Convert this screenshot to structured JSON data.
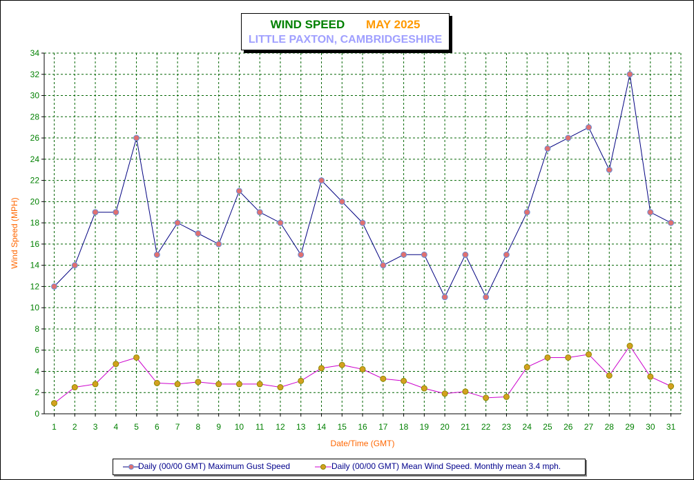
{
  "chart_data": {
    "type": "line",
    "title": "WIND SPEED",
    "title_date": "MAY 2025",
    "subtitle": "LITTLE PAXTON, CAMBRIDGESHIRE",
    "xlabel": "Date/Time (GMT)",
    "ylabel": "Wind Speed (MPH)",
    "ylim": [
      0,
      34
    ],
    "yticks": [
      0,
      2,
      4,
      6,
      8,
      10,
      12,
      14,
      16,
      18,
      20,
      22,
      24,
      26,
      28,
      30,
      32,
      34
    ],
    "grid": true,
    "legend_position": "bottom",
    "x": [
      1,
      2,
      3,
      4,
      5,
      6,
      7,
      8,
      9,
      10,
      11,
      12,
      13,
      14,
      15,
      16,
      17,
      18,
      19,
      20,
      21,
      22,
      23,
      24,
      25,
      26,
      27,
      28,
      29,
      30,
      31
    ],
    "series": [
      {
        "name": "Daily (00/00 GMT) Maximum Gust Speed",
        "line_color": "#000080",
        "marker_color": "#e07070",
        "marker_edge": "#6a8fd8",
        "values": [
          12,
          14,
          19,
          19,
          26,
          15,
          18,
          17,
          16,
          21,
          19,
          18,
          15,
          22,
          20,
          18,
          14,
          15,
          15,
          11,
          15,
          11,
          15,
          19,
          25,
          26,
          27,
          23,
          32,
          19,
          18
        ]
      },
      {
        "name": "Daily (00/00 GMT) Mean Wind Speed. Monthly mean 3.4 mph.",
        "line_color": "#cc00cc",
        "marker_color": "#d4a020",
        "marker_edge": "#8a8a00",
        "values": [
          1.0,
          2.5,
          2.8,
          4.7,
          5.3,
          2.9,
          2.8,
          3.0,
          2.8,
          2.8,
          2.8,
          2.5,
          3.1,
          4.3,
          4.6,
          4.2,
          3.3,
          3.1,
          2.4,
          1.9,
          2.1,
          1.5,
          1.6,
          4.4,
          5.3,
          5.3,
          5.6,
          3.6,
          6.4,
          3.5,
          2.6
        ]
      }
    ]
  }
}
